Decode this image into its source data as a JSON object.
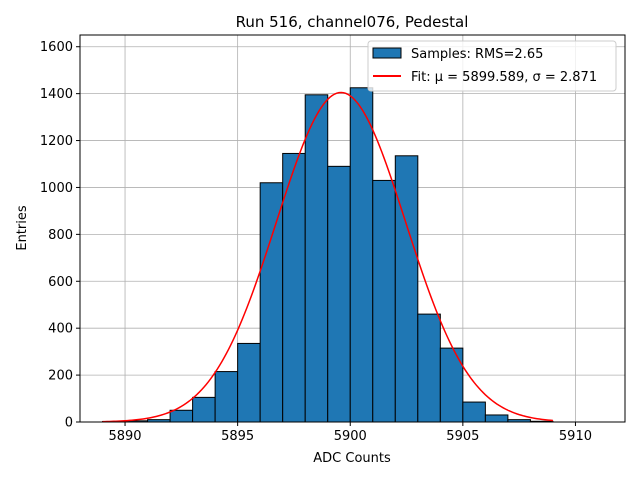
{
  "chart_data": {
    "type": "bar",
    "title": "Run 516, channel076, Pedestal",
    "xlabel": "ADC Counts",
    "ylabel": "Entries",
    "xlim": [
      5888.0,
      5912.2
    ],
    "ylim": [
      0,
      1650
    ],
    "grid": true,
    "legend_position": "top-right",
    "x_ticks": [
      5890,
      5895,
      5900,
      5905,
      5910
    ],
    "y_ticks": [
      0,
      200,
      400,
      600,
      800,
      1000,
      1200,
      1400,
      1600
    ],
    "bin_edges": [
      5889,
      5890,
      5891,
      5892,
      5893,
      5894,
      5895,
      5896,
      5897,
      5898,
      5899,
      5900,
      5901,
      5902,
      5903,
      5904,
      5905,
      5906,
      5907,
      5908,
      5909
    ],
    "counts": [
      2,
      5,
      10,
      50,
      105,
      215,
      335,
      1020,
      1145,
      1395,
      1090,
      1425,
      1030,
      1135,
      460,
      315,
      85,
      30,
      10,
      3
    ],
    "bar_color": "#1f77b4",
    "fit": {
      "mu": 5899.589,
      "sigma": 2.871,
      "amplitude": 1405,
      "x_range": [
        5889,
        5909
      ],
      "color": "#ff0000"
    },
    "legend": [
      {
        "label": "Samples: RMS=2.65",
        "kind": "patch",
        "color": "#1f77b4"
      },
      {
        "label": "Fit: μ = 5899.589, σ = 2.871",
        "kind": "line",
        "color": "#ff0000"
      }
    ]
  }
}
